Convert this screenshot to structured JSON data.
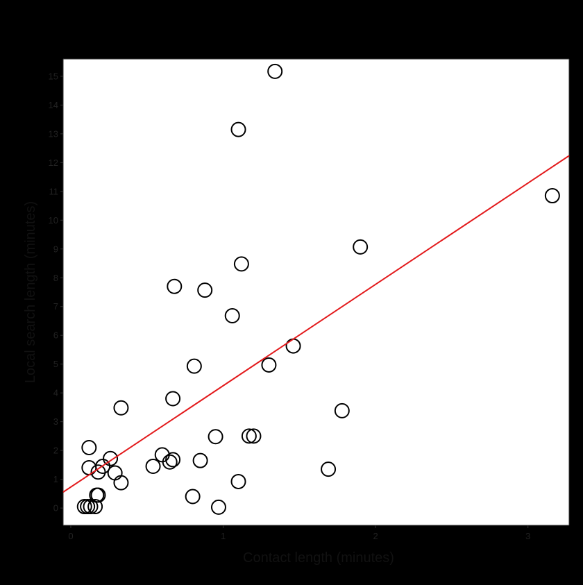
{
  "colors": {
    "outer_background": "#000000",
    "plot_background": "#ffffff",
    "point_stroke": "#000000",
    "trend_line": "#e31a1c"
  },
  "chart_data": {
    "type": "scatter",
    "title": "",
    "xlabel": "Contact length (minutes)",
    "ylabel": "Local search length (minutes)",
    "xlim": [
      -0.05,
      3.27
    ],
    "ylim": [
      -0.6,
      15.6
    ],
    "x_ticks": [
      0,
      1,
      2,
      3
    ],
    "y_ticks": [
      0,
      1,
      2,
      3,
      4,
      5,
      6,
      7,
      8,
      9,
      10,
      11,
      12,
      13,
      14,
      15
    ],
    "grid": false,
    "legend": "none",
    "points": [
      {
        "x": 0.09,
        "y": 0.05
      },
      {
        "x": 0.11,
        "y": 0.05
      },
      {
        "x": 0.13,
        "y": 0.05
      },
      {
        "x": 0.16,
        "y": 0.05
      },
      {
        "x": 0.17,
        "y": 0.45
      },
      {
        "x": 0.18,
        "y": 0.45
      },
      {
        "x": 0.12,
        "y": 2.1
      },
      {
        "x": 0.12,
        "y": 1.4
      },
      {
        "x": 0.18,
        "y": 1.25
      },
      {
        "x": 0.21,
        "y": 1.45
      },
      {
        "x": 0.26,
        "y": 1.72
      },
      {
        "x": 0.29,
        "y": 1.22
      },
      {
        "x": 0.33,
        "y": 0.88
      },
      {
        "x": 0.33,
        "y": 3.48
      },
      {
        "x": 0.54,
        "y": 1.45
      },
      {
        "x": 0.6,
        "y": 1.85
      },
      {
        "x": 0.65,
        "y": 1.6
      },
      {
        "x": 0.67,
        "y": 1.68
      },
      {
        "x": 0.67,
        "y": 3.8
      },
      {
        "x": 0.68,
        "y": 7.7
      },
      {
        "x": 0.8,
        "y": 0.4
      },
      {
        "x": 0.81,
        "y": 4.93
      },
      {
        "x": 0.85,
        "y": 1.65
      },
      {
        "x": 0.88,
        "y": 7.57
      },
      {
        "x": 0.95,
        "y": 2.48
      },
      {
        "x": 0.97,
        "y": 0.03
      },
      {
        "x": 1.06,
        "y": 6.68
      },
      {
        "x": 1.1,
        "y": 13.15
      },
      {
        "x": 1.1,
        "y": 0.92
      },
      {
        "x": 1.12,
        "y": 8.48
      },
      {
        "x": 1.17,
        "y": 2.5
      },
      {
        "x": 1.2,
        "y": 2.5
      },
      {
        "x": 1.3,
        "y": 4.97
      },
      {
        "x": 1.34,
        "y": 15.17
      },
      {
        "x": 1.46,
        "y": 5.63
      },
      {
        "x": 1.69,
        "y": 1.35
      },
      {
        "x": 1.78,
        "y": 3.38
      },
      {
        "x": 1.9,
        "y": 9.07
      },
      {
        "x": 3.16,
        "y": 10.85
      }
    ],
    "trend_line": {
      "intercept": 0.73,
      "slope": 3.52
    }
  }
}
